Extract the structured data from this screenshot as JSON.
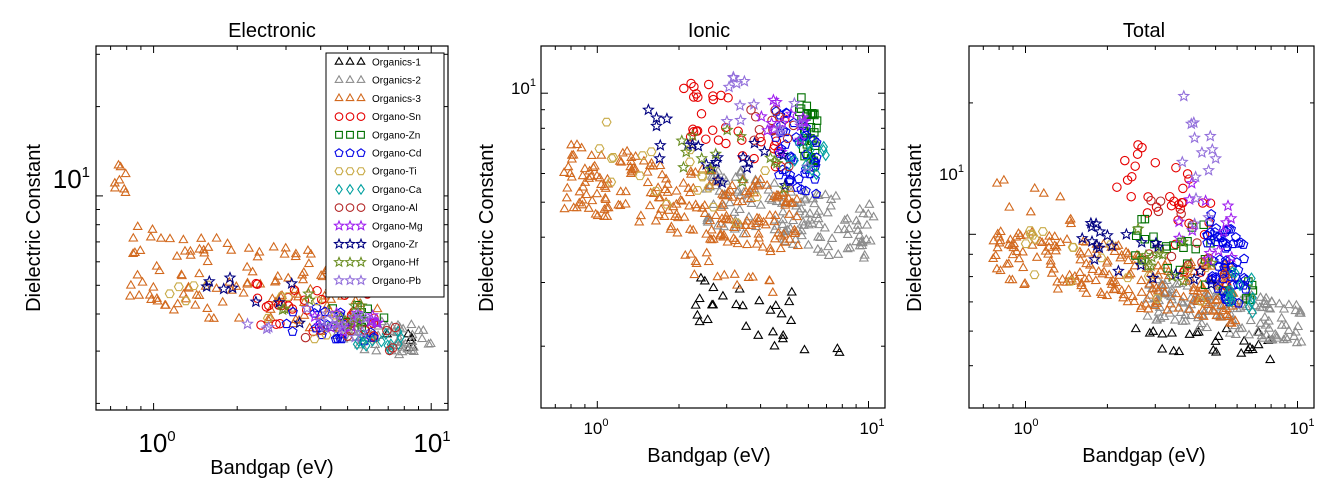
{
  "chart_data": [
    {
      "type": "scatter",
      "title": "Electronic",
      "xlabel": "Bandgap (eV)",
      "ylabel": "Dielectric Constant",
      "x_scale": "log",
      "y_scale": "log",
      "xlim": [
        0.62,
        11.5
      ],
      "ylim": [
        1.9,
        32
      ],
      "x_ticks": [
        {
          "base": "10",
          "exp": "0",
          "value": 1
        },
        {
          "base": "10",
          "exp": "1",
          "value": 10
        }
      ],
      "y_ticks": [
        {
          "base": "10",
          "exp": "1",
          "value": 10
        }
      ],
      "legend_position": "top-right",
      "clusters": [
        {
          "series": "Organics-1",
          "n": 6,
          "x": [
            6.5,
            9.5
          ],
          "y": [
            2.9,
            3.5
          ],
          "spread": 0.2
        },
        {
          "series": "Organics-2",
          "n": 60,
          "x": [
            4.5,
            10.0
          ],
          "y": [
            2.8,
            4.0
          ],
          "spread": 0.3
        },
        {
          "series": "Organics-3",
          "n": 130,
          "x": [
            0.8,
            6.5
          ],
          "y": [
            3.2,
            8.0
          ],
          "spread": 0.3
        },
        {
          "series": "Organics-3",
          "n": 8,
          "x": [
            0.72,
            0.8
          ],
          "y": [
            10.0,
            13.0
          ],
          "spread": 0.2
        },
        {
          "series": "Organo-Sn",
          "n": 28,
          "x": [
            2.0,
            6.5
          ],
          "y": [
            3.2,
            5.5
          ],
          "spread": 0.3
        },
        {
          "series": "Organo-Zn",
          "n": 10,
          "x": [
            3.0,
            7.0
          ],
          "y": [
            3.5,
            4.5
          ],
          "spread": 0.2
        },
        {
          "series": "Organo-Cd",
          "n": 22,
          "x": [
            3.0,
            6.5
          ],
          "y": [
            3.2,
            4.3
          ],
          "spread": 0.2
        },
        {
          "series": "Organo-Ti",
          "n": 12,
          "x": [
            0.95,
            5.5
          ],
          "y": [
            3.0,
            5.5
          ],
          "spread": 0.3
        },
        {
          "series": "Organo-Ca",
          "n": 14,
          "x": [
            5.0,
            8.0
          ],
          "y": [
            3.0,
            3.6
          ],
          "spread": 0.2
        },
        {
          "series": "Organo-Al",
          "n": 10,
          "x": [
            3.5,
            7.5
          ],
          "y": [
            3.0,
            3.8
          ],
          "spread": 0.2
        },
        {
          "series": "Organo-Mg",
          "n": 14,
          "x": [
            3.5,
            6.5
          ],
          "y": [
            3.3,
            4.2
          ],
          "spread": 0.2
        },
        {
          "series": "Organo-Zr",
          "n": 10,
          "x": [
            1.4,
            4.5
          ],
          "y": [
            3.5,
            6.0
          ],
          "spread": 0.3
        },
        {
          "series": "Organo-Hf",
          "n": 10,
          "x": [
            2.0,
            6.0
          ],
          "y": [
            3.5,
            5.0
          ],
          "spread": 0.3
        },
        {
          "series": "Organo-Pb",
          "n": 16,
          "x": [
            2.0,
            6.0
          ],
          "y": [
            3.3,
            4.5
          ],
          "spread": 0.3
        }
      ]
    },
    {
      "type": "scatter",
      "title": "Ionic",
      "xlabel": "Bandgap (eV)",
      "ylabel": "Dielectric Constant",
      "x_scale": "log",
      "y_scale": "log",
      "xlim": [
        0.62,
        11.5
      ],
      "ylim": [
        1.35,
        13.5
      ],
      "x_ticks": [
        {
          "base": "10",
          "exp": "0",
          "value": 1
        },
        {
          "base": "10",
          "exp": "1",
          "value": 10
        }
      ],
      "y_ticks": [
        {
          "base": "10",
          "exp": "1",
          "value": 10
        }
      ],
      "clusters": [
        {
          "series": "Organics-1",
          "n": 30,
          "x": [
            2.3,
            9.0
          ],
          "y": [
            1.8,
            3.2
          ],
          "spread": 0.3
        },
        {
          "series": "Organics-2",
          "n": 140,
          "x": [
            2.5,
            10.5
          ],
          "y": [
            3.3,
            6.5
          ],
          "spread": 0.4
        },
        {
          "series": "Organics-3",
          "n": 220,
          "x": [
            0.75,
            5.5
          ],
          "y": [
            3.5,
            7.5
          ],
          "spread": 0.4
        },
        {
          "series": "Organics-3",
          "n": 16,
          "x": [
            1.8,
            4.5
          ],
          "y": [
            2.8,
            3.8
          ],
          "spread": 0.3
        },
        {
          "series": "Organo-Sn",
          "n": 35,
          "x": [
            2.0,
            5.0
          ],
          "y": [
            6.0,
            11.5
          ],
          "spread": 0.4
        },
        {
          "series": "Organo-Zn",
          "n": 35,
          "x": [
            5.5,
            6.5
          ],
          "y": [
            6.0,
            10.0
          ],
          "spread": 0.3
        },
        {
          "series": "Organo-Cd",
          "n": 45,
          "x": [
            4.5,
            6.5
          ],
          "y": [
            5.0,
            9.5
          ],
          "spread": 0.3
        },
        {
          "series": "Organo-Ti",
          "n": 20,
          "x": [
            1.0,
            5.0
          ],
          "y": [
            4.0,
            8.5
          ],
          "spread": 0.4
        },
        {
          "series": "Organo-Ca",
          "n": 15,
          "x": [
            5.0,
            7.0
          ],
          "y": [
            5.5,
            8.0
          ],
          "spread": 0.3
        },
        {
          "series": "Organo-Al",
          "n": 12,
          "x": [
            3.5,
            5.5
          ],
          "y": [
            6.0,
            10.0
          ],
          "spread": 0.3
        },
        {
          "series": "Organo-Mg",
          "n": 14,
          "x": [
            4.0,
            6.0
          ],
          "y": [
            6.0,
            10.5
          ],
          "spread": 0.3
        },
        {
          "series": "Organo-Zr",
          "n": 22,
          "x": [
            1.5,
            5.0
          ],
          "y": [
            5.0,
            9.5
          ],
          "spread": 0.4
        },
        {
          "series": "Organo-Hf",
          "n": 14,
          "x": [
            2.0,
            5.0
          ],
          "y": [
            5.0,
            8.5
          ],
          "spread": 0.3
        },
        {
          "series": "Organo-Pb",
          "n": 14,
          "x": [
            3.0,
            6.0
          ],
          "y": [
            6.0,
            12.0
          ],
          "spread": 0.4
        }
      ]
    },
    {
      "type": "scatter",
      "title": "Total",
      "xlabel": "Bandgap (eV)",
      "ylabel": "Dielectric Constant",
      "x_scale": "log",
      "y_scale": "log",
      "xlim": [
        0.62,
        11.5
      ],
      "ylim": [
        4.0,
        27
      ],
      "x_ticks": [
        {
          "base": "10",
          "exp": "0",
          "value": 1
        },
        {
          "base": "10",
          "exp": "1",
          "value": 10
        }
      ],
      "y_ticks": [
        {
          "base": "10",
          "exp": "1",
          "value": 10
        }
      ],
      "clusters": [
        {
          "series": "Organics-1",
          "n": 25,
          "x": [
            2.5,
            9.0
          ],
          "y": [
            5.0,
            6.5
          ],
          "spread": 0.3
        },
        {
          "series": "Organics-2",
          "n": 140,
          "x": [
            2.8,
            10.5
          ],
          "y": [
            5.5,
            8.0
          ],
          "spread": 0.4
        },
        {
          "series": "Organics-3",
          "n": 220,
          "x": [
            0.75,
            6.0
          ],
          "y": [
            6.2,
            10.5
          ],
          "spread": 0.4
        },
        {
          "series": "Organics-3",
          "n": 10,
          "x": [
            0.72,
            1.5
          ],
          "y": [
            10.5,
            13.5
          ],
          "spread": 0.3
        },
        {
          "series": "Organo-Sn",
          "n": 35,
          "x": [
            2.0,
            5.5
          ],
          "y": [
            7.0,
            18.0
          ],
          "spread": 0.4
        },
        {
          "series": "Organo-Zn",
          "n": 30,
          "x": [
            2.5,
            7.0
          ],
          "y": [
            7.0,
            12.0
          ],
          "spread": 0.4
        },
        {
          "series": "Organo-Cd",
          "n": 65,
          "x": [
            4.5,
            6.5
          ],
          "y": [
            6.5,
            11.5
          ],
          "spread": 0.3
        },
        {
          "series": "Organo-Ti",
          "n": 18,
          "x": [
            1.0,
            5.0
          ],
          "y": [
            6.5,
            10.5
          ],
          "spread": 0.4
        },
        {
          "series": "Organo-Ca",
          "n": 14,
          "x": [
            5.5,
            7.0
          ],
          "y": [
            6.5,
            8.5
          ],
          "spread": 0.3
        },
        {
          "series": "Organo-Al",
          "n": 12,
          "x": [
            2.5,
            5.5
          ],
          "y": [
            7.5,
            12.5
          ],
          "spread": 0.3
        },
        {
          "series": "Organo-Mg",
          "n": 14,
          "x": [
            3.5,
            6.0
          ],
          "y": [
            8.0,
            14.0
          ],
          "spread": 0.3
        },
        {
          "series": "Organo-Zr",
          "n": 22,
          "x": [
            1.5,
            5.0
          ],
          "y": [
            7.0,
            11.0
          ],
          "spread": 0.4
        },
        {
          "series": "Organo-Hf",
          "n": 12,
          "x": [
            2.5,
            5.0
          ],
          "y": [
            7.5,
            10.5
          ],
          "spread": 0.3
        },
        {
          "series": "Organo-Pb",
          "n": 14,
          "x": [
            3.5,
            5.5
          ],
          "y": [
            8.0,
            23.0
          ],
          "spread": 0.4
        }
      ]
    }
  ],
  "legend": {
    "entries": [
      {
        "label": "Organics-1",
        "marker": "triangle",
        "color": "#000000"
      },
      {
        "label": "Organics-2",
        "marker": "triangle",
        "color": "#8c8c8c"
      },
      {
        "label": "Organics-3",
        "marker": "triangle",
        "color": "#d2691e"
      },
      {
        "label": "Organo-Sn",
        "marker": "circle",
        "color": "#e60000"
      },
      {
        "label": "Organo-Zn",
        "marker": "square",
        "color": "#007000"
      },
      {
        "label": "Organo-Cd",
        "marker": "pentagon",
        "color": "#0000e6"
      },
      {
        "label": "Organo-Ti",
        "marker": "hexagon",
        "color": "#c8aa46"
      },
      {
        "label": "Organo-Ca",
        "marker": "diamond",
        "color": "#00a0a0"
      },
      {
        "label": "Organo-Al",
        "marker": "circle",
        "color": "#b42828"
      },
      {
        "label": "Organo-Mg",
        "marker": "star",
        "color": "#a020f0"
      },
      {
        "label": "Organo-Zr",
        "marker": "star",
        "color": "#000080"
      },
      {
        "label": "Organo-Hf",
        "marker": "star",
        "color": "#6b8e23"
      },
      {
        "label": "Organo-Pb",
        "marker": "star",
        "color": "#9370db"
      }
    ]
  }
}
